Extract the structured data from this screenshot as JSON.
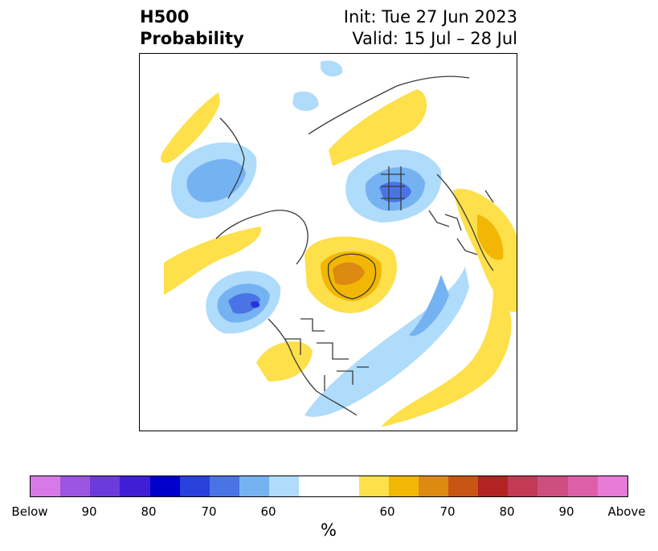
{
  "header": {
    "title_line1": "H500",
    "title_line2": "Probability",
    "init_text": "Init: Tue 27 Jun 2023",
    "valid_text": "Valid: 15 Jul – 28 Jul"
  },
  "map": {
    "background": "#ffffff",
    "coastline_color": "#3a3a3a",
    "below_colors": {
      "p50": "#aedcfa",
      "p60": "#75b2f2",
      "p70": "#4a74e6",
      "p80": "#2836d9"
    },
    "above_colors": {
      "p50": "#fde04a",
      "p60": "#f2b705",
      "p70": "#dd8a12"
    }
  },
  "colorbar": {
    "colors": [
      "#d879e8",
      "#9b55e0",
      "#6c3bdb",
      "#3f1fd6",
      "#0000cd",
      "#2840dc",
      "#4a74e6",
      "#75b2f2",
      "#aedcfa",
      "#ffffff",
      "#fde04a",
      "#f2b705",
      "#dd8a12",
      "#c85514",
      "#b22424",
      "#c23a55",
      "#cc4f80",
      "#dd5fa8",
      "#e87ad8"
    ],
    "ticks": [
      "Below",
      "90",
      "80",
      "70",
      "60",
      "60",
      "70",
      "80",
      "90",
      "Above"
    ],
    "unit": "%"
  }
}
